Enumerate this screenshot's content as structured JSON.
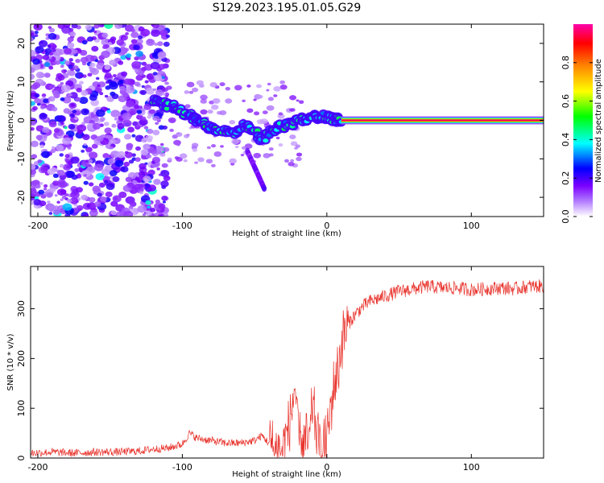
{
  "title": "S129.2023.195.01.05.G29",
  "chart_data": [
    {
      "type": "heatmap",
      "xlabel": "Height of straight line (km)",
      "ylabel": "Frequency (Hz)",
      "xlim": [
        -205,
        150
      ],
      "ylim": [
        -25,
        25
      ],
      "xticks": [
        -200,
        -100,
        0,
        100
      ],
      "yticks": [
        20,
        10,
        0,
        -10,
        -20
      ],
      "colorbar": {
        "label": "Normalized spectral amplitude",
        "range": [
          0.0,
          1.0
        ],
        "ticks": [
          0.0,
          0.2,
          0.4,
          0.6,
          0.8
        ],
        "tick_labels": [
          "0.0",
          "0.2",
          "0.4",
          "0.6",
          "0.8"
        ],
        "colors": [
          "#ffffff",
          "#9900ff",
          "#0000ff",
          "#00ffff",
          "#00ff00",
          "#ffff00",
          "#ff8800",
          "#ff0000",
          "#ff00aa"
        ]
      },
      "features": {
        "noise_region_x": [
          -205,
          -120
        ],
        "descending_track": [
          {
            "x": -120,
            "y": 5
          },
          {
            "x": -110,
            "y": 4
          },
          {
            "x": -100,
            "y": 2
          },
          {
            "x": -90,
            "y": 0
          },
          {
            "x": -80,
            "y": -2
          },
          {
            "x": -65,
            "y": -3
          },
          {
            "x": -55,
            "y": -1
          },
          {
            "x": -45,
            "y": -5
          },
          {
            "x": -35,
            "y": -2
          },
          {
            "x": -25,
            "y": -1
          },
          {
            "x": -15,
            "y": 0.5
          },
          {
            "x": -5,
            "y": 1
          },
          {
            "x": 5,
            "y": 0.5
          },
          {
            "x": 10,
            "y": 0
          }
        ],
        "steady_line": {
          "x_start": 10,
          "x_end": 150,
          "y": 0,
          "amplitude": 0.95
        }
      }
    },
    {
      "type": "line",
      "xlabel": "Height of straight line (km)",
      "ylabel": "SNR (10 * v/v)",
      "xlim": [
        -205,
        150
      ],
      "ylim": [
        0,
        385
      ],
      "xticks": [
        -200,
        -100,
        0,
        100
      ],
      "yticks": [
        0,
        100,
        200,
        300
      ],
      "series": [
        {
          "color": "#e8312a",
          "x": [
            -205,
            -190,
            -175,
            -160,
            -145,
            -130,
            -120,
            -110,
            -100,
            -95,
            -90,
            -80,
            -70,
            -60,
            -50,
            -45,
            -40,
            -35,
            -30,
            -25,
            -22,
            -20,
            -18,
            -15,
            -12,
            -10,
            -5,
            0,
            2,
            5,
            8,
            10,
            12,
            15,
            20,
            25,
            30,
            40,
            50,
            60,
            70,
            80,
            90,
            100,
            110,
            120,
            130,
            140,
            150
          ],
          "y": [
            10,
            12,
            10,
            12,
            12,
            14,
            18,
            20,
            28,
            50,
            40,
            35,
            30,
            30,
            35,
            45,
            30,
            15,
            20,
            80,
            150,
            40,
            35,
            40,
            25,
            110,
            15,
            30,
            80,
            150,
            180,
            230,
            250,
            270,
            290,
            305,
            315,
            325,
            335,
            340,
            345,
            342,
            342,
            338,
            340,
            342,
            340,
            345,
            345
          ]
        }
      ]
    }
  ]
}
